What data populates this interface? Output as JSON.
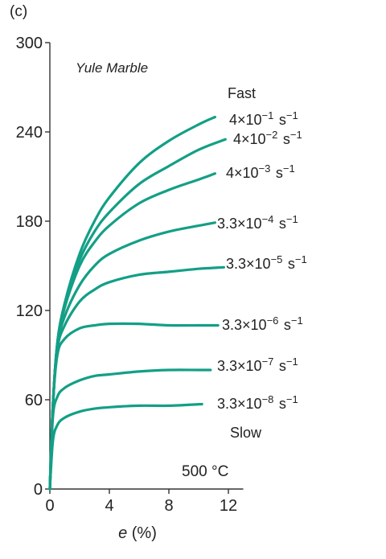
{
  "panel_label": "(c)",
  "chart_data": {
    "type": "line",
    "title": "",
    "xlabel": {
      "var": "e",
      "unit": " (%)"
    },
    "ylabel": "",
    "xlim": [
      0,
      13
    ],
    "ylim": [
      0,
      300
    ],
    "xticks": [
      "0",
      "4",
      "8",
      "12"
    ],
    "xtick_values": [
      0,
      4,
      8,
      12
    ],
    "yticks": [
      "0",
      "60",
      "120",
      "180",
      "240",
      "300"
    ],
    "ytick_values": [
      0,
      60,
      120,
      180,
      240,
      300
    ],
    "grid": false,
    "line_color": "#139f86",
    "annotations": {
      "material": "Yule Marble",
      "fast": "Fast",
      "slow": "Slow",
      "temperature": "500 °C"
    },
    "series": [
      {
        "name": "4×10⁻¹ s⁻¹",
        "x": [
          0,
          0.2,
          0.5,
          1,
          2,
          3,
          4,
          6,
          8,
          10,
          11.1
        ],
        "y": [
          0,
          55,
          98,
          125,
          158,
          180,
          196,
          219,
          234,
          245,
          250
        ]
      },
      {
        "name": "4×10⁻² s⁻¹",
        "x": [
          0,
          0.2,
          0.5,
          1,
          2,
          3,
          4,
          6,
          8,
          10,
          11.8
        ],
        "y": [
          0,
          55,
          98,
          124,
          154,
          173,
          186,
          205,
          217,
          228,
          235
        ]
      },
      {
        "name": "4×10⁻³ s⁻¹",
        "x": [
          0,
          0.2,
          0.5,
          1,
          2,
          3,
          4,
          6,
          8,
          10,
          11.1
        ],
        "y": [
          0,
          55,
          97,
          122,
          150,
          166,
          177,
          192,
          201,
          208,
          212
        ]
      },
      {
        "name": "3.3×10⁻⁴ s⁻¹",
        "x": [
          0,
          0.2,
          0.5,
          1,
          2,
          3,
          4,
          6,
          8,
          10,
          11.1
        ],
        "y": [
          0,
          55,
          96,
          116,
          137,
          150,
          158,
          167,
          173,
          177,
          179
        ]
      },
      {
        "name": "3.3×10⁻⁵ s⁻¹",
        "x": [
          0,
          0.2,
          0.5,
          1,
          2,
          3,
          4,
          6,
          8,
          10,
          11.7
        ],
        "y": [
          0,
          55,
          94,
          110,
          126,
          134,
          139,
          144,
          146,
          148,
          149
        ]
      },
      {
        "name": "3.3×10⁻⁶ s⁻¹",
        "x": [
          0,
          0.2,
          0.5,
          1,
          2,
          3,
          4,
          6,
          8,
          10,
          11.3
        ],
        "y": [
          0,
          55,
          90,
          101,
          108,
          110,
          111,
          111,
          110,
          110,
          110
        ]
      },
      {
        "name": "3.3×10⁻⁷ s⁻¹",
        "x": [
          0,
          0.2,
          0.5,
          1,
          2,
          3,
          4,
          6,
          8,
          10,
          10.8
        ],
        "y": [
          0,
          48,
          62,
          68,
          73,
          76,
          77,
          79,
          80,
          80,
          80
        ]
      },
      {
        "name": "3.3×10⁻⁸ s⁻¹",
        "x": [
          0,
          0.2,
          0.5,
          1,
          2,
          3,
          4,
          6,
          8,
          10,
          10.2
        ],
        "y": [
          0,
          32,
          43,
          48,
          52,
          54,
          55,
          56,
          56,
          57,
          57
        ]
      }
    ]
  }
}
